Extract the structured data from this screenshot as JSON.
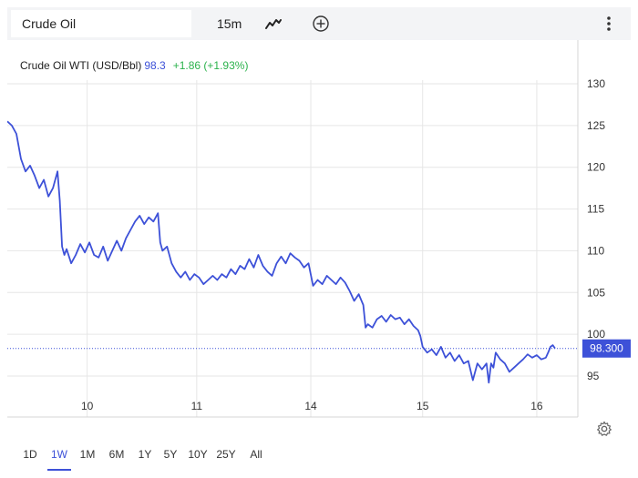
{
  "toolbar": {
    "symbol": "Crude Oil",
    "interval": "15m",
    "chart_type_icon": "line-chart-icon",
    "add_icon": "plus-circle-icon",
    "menu_icon": "vertical-dots-icon"
  },
  "legend": {
    "name": "Crude Oil WTI (USD/Bbl)",
    "price": "98.3",
    "change": "+1.86 (+1.93%)"
  },
  "price_tag": "98.300",
  "ranges": [
    {
      "label": "1D",
      "active": false
    },
    {
      "label": "1W",
      "active": true
    },
    {
      "label": "1M",
      "active": false
    },
    {
      "label": "6M",
      "active": false
    },
    {
      "label": "1Y",
      "active": false
    },
    {
      "label": "5Y",
      "active": false
    },
    {
      "label": "10Y",
      "active": false
    },
    {
      "label": "25Y",
      "active": false
    },
    {
      "label": "All",
      "active": false
    }
  ],
  "settings_icon": "gear-icon",
  "colors": {
    "line": "#3d51d8",
    "price_tag_bg": "#3d51d8",
    "positive_change": "#2bb24c",
    "grid": "#e6e6e6"
  },
  "chart_data": {
    "type": "line",
    "title": "Crude Oil WTI (USD/Bbl)",
    "xlabel": "",
    "ylabel": "",
    "ylim": [
      90,
      132
    ],
    "yticks": [
      95,
      100,
      105,
      110,
      115,
      120,
      125,
      130
    ],
    "xtick_labels": [
      {
        "label": "10",
        "t": 0.175
      },
      {
        "label": "11",
        "t": 0.415
      },
      {
        "label": "14",
        "t": 0.665
      },
      {
        "label": "15",
        "t": 0.91
      },
      {
        "label": "16",
        "t": 1.16
      }
    ],
    "x_domain": [
      0,
      1.25
    ],
    "grid": true,
    "last_value_line": 98.3,
    "series": [
      {
        "name": "Crude Oil WTI (USD/Bbl)",
        "points": [
          [
            0.0,
            125.5
          ],
          [
            0.01,
            125.0
          ],
          [
            0.02,
            124.0
          ],
          [
            0.03,
            121.0
          ],
          [
            0.04,
            119.5
          ],
          [
            0.05,
            120.2
          ],
          [
            0.06,
            119.0
          ],
          [
            0.07,
            117.5
          ],
          [
            0.08,
            118.5
          ],
          [
            0.09,
            116.5
          ],
          [
            0.1,
            117.5
          ],
          [
            0.11,
            119.5
          ],
          [
            0.115,
            116.0
          ],
          [
            0.12,
            110.5
          ],
          [
            0.125,
            109.5
          ],
          [
            0.13,
            110.2
          ],
          [
            0.14,
            108.5
          ],
          [
            0.15,
            109.5
          ],
          [
            0.16,
            110.8
          ],
          [
            0.17,
            109.8
          ],
          [
            0.18,
            111.0
          ],
          [
            0.19,
            109.5
          ],
          [
            0.2,
            109.2
          ],
          [
            0.21,
            110.5
          ],
          [
            0.22,
            108.8
          ],
          [
            0.23,
            110.0
          ],
          [
            0.24,
            111.2
          ],
          [
            0.25,
            110.0
          ],
          [
            0.26,
            111.5
          ],
          [
            0.27,
            112.5
          ],
          [
            0.28,
            113.5
          ],
          [
            0.29,
            114.2
          ],
          [
            0.3,
            113.2
          ],
          [
            0.31,
            114.0
          ],
          [
            0.32,
            113.5
          ],
          [
            0.33,
            114.5
          ],
          [
            0.335,
            111.0
          ],
          [
            0.34,
            110.0
          ],
          [
            0.35,
            110.5
          ],
          [
            0.36,
            108.5
          ],
          [
            0.37,
            107.5
          ],
          [
            0.38,
            106.8
          ],
          [
            0.39,
            107.5
          ],
          [
            0.4,
            106.5
          ],
          [
            0.41,
            107.2
          ],
          [
            0.42,
            106.8
          ],
          [
            0.43,
            106.0
          ],
          [
            0.44,
            106.5
          ],
          [
            0.45,
            107.0
          ],
          [
            0.46,
            106.5
          ],
          [
            0.47,
            107.2
          ],
          [
            0.48,
            106.8
          ],
          [
            0.49,
            107.8
          ],
          [
            0.5,
            107.2
          ],
          [
            0.51,
            108.2
          ],
          [
            0.52,
            107.8
          ],
          [
            0.53,
            109.0
          ],
          [
            0.54,
            108.0
          ],
          [
            0.55,
            109.5
          ],
          [
            0.56,
            108.2
          ],
          [
            0.57,
            107.5
          ],
          [
            0.58,
            107.0
          ],
          [
            0.59,
            108.5
          ],
          [
            0.6,
            109.3
          ],
          [
            0.61,
            108.5
          ],
          [
            0.62,
            109.7
          ],
          [
            0.63,
            109.2
          ],
          [
            0.64,
            108.8
          ],
          [
            0.65,
            108.0
          ],
          [
            0.66,
            108.5
          ],
          [
            0.67,
            105.8
          ],
          [
            0.68,
            106.5
          ],
          [
            0.69,
            106.0
          ],
          [
            0.7,
            107.0
          ],
          [
            0.71,
            106.5
          ],
          [
            0.72,
            106.0
          ],
          [
            0.73,
            106.8
          ],
          [
            0.74,
            106.2
          ],
          [
            0.75,
            105.2
          ],
          [
            0.76,
            104.0
          ],
          [
            0.77,
            104.8
          ],
          [
            0.78,
            103.5
          ],
          [
            0.785,
            100.8
          ],
          [
            0.79,
            101.2
          ],
          [
            0.8,
            100.8
          ],
          [
            0.81,
            101.8
          ],
          [
            0.82,
            102.2
          ],
          [
            0.83,
            101.5
          ],
          [
            0.84,
            102.3
          ],
          [
            0.85,
            101.8
          ],
          [
            0.86,
            102.0
          ],
          [
            0.87,
            101.2
          ],
          [
            0.88,
            101.8
          ],
          [
            0.89,
            101.0
          ],
          [
            0.9,
            100.5
          ],
          [
            0.905,
            99.8
          ],
          [
            0.91,
            98.5
          ],
          [
            0.92,
            97.8
          ],
          [
            0.93,
            98.2
          ],
          [
            0.94,
            97.5
          ],
          [
            0.95,
            98.5
          ],
          [
            0.96,
            97.2
          ],
          [
            0.97,
            97.8
          ],
          [
            0.98,
            96.8
          ],
          [
            0.99,
            97.5
          ],
          [
            1.0,
            96.5
          ],
          [
            1.01,
            96.8
          ],
          [
            1.02,
            94.5
          ],
          [
            1.03,
            96.5
          ],
          [
            1.04,
            95.8
          ],
          [
            1.05,
            96.5
          ],
          [
            1.055,
            94.2
          ],
          [
            1.06,
            96.5
          ],
          [
            1.065,
            96.0
          ],
          [
            1.07,
            97.8
          ],
          [
            1.08,
            97.0
          ],
          [
            1.09,
            96.5
          ],
          [
            1.1,
            95.5
          ],
          [
            1.11,
            96.0
          ],
          [
            1.12,
            96.5
          ],
          [
            1.13,
            97.0
          ],
          [
            1.14,
            97.6
          ],
          [
            1.15,
            97.2
          ],
          [
            1.16,
            97.5
          ],
          [
            1.17,
            97.0
          ],
          [
            1.18,
            97.2
          ],
          [
            1.185,
            97.8
          ],
          [
            1.19,
            98.5
          ],
          [
            1.195,
            98.7
          ],
          [
            1.2,
            98.3
          ]
        ]
      }
    ]
  }
}
